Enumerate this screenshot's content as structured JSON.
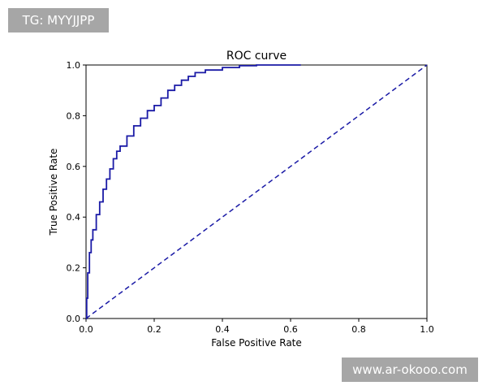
{
  "overlays": {
    "tag_text": "TG: MYYJJPP",
    "watermark_text": "www.ar-okooo.com"
  },
  "chart_data": {
    "type": "line",
    "title": "ROC curve",
    "xlabel": "False Positive Rate",
    "ylabel": "True Positive Rate",
    "xlim": [
      0.0,
      1.0
    ],
    "ylim": [
      0.0,
      1.0
    ],
    "x_ticks": [
      "0.0",
      "0.2",
      "0.4",
      "0.6",
      "0.8",
      "1.0"
    ],
    "y_ticks": [
      "0.0",
      "0.2",
      "0.4",
      "0.6",
      "0.8",
      "1.0"
    ],
    "grid": false,
    "series": [
      {
        "style": "solid",
        "color": "#1a1aa6",
        "x": [
          0.0,
          0.002,
          0.005,
          0.01,
          0.015,
          0.02,
          0.03,
          0.04,
          0.05,
          0.06,
          0.07,
          0.08,
          0.09,
          0.1,
          0.12,
          0.14,
          0.16,
          0.18,
          0.2,
          0.22,
          0.24,
          0.26,
          0.28,
          0.3,
          0.32,
          0.35,
          0.4,
          0.45,
          0.5,
          0.55,
          0.6,
          0.63
        ],
        "y": [
          0.0,
          0.08,
          0.18,
          0.26,
          0.31,
          0.35,
          0.41,
          0.46,
          0.51,
          0.55,
          0.59,
          0.63,
          0.66,
          0.68,
          0.72,
          0.76,
          0.79,
          0.82,
          0.84,
          0.87,
          0.9,
          0.92,
          0.94,
          0.955,
          0.97,
          0.98,
          0.99,
          0.997,
          1.0,
          1.0,
          1.0,
          1.0
        ]
      },
      {
        "style": "dashed",
        "color": "#1a1aa6",
        "x": [
          0.0,
          1.0
        ],
        "y": [
          0.0,
          1.0
        ]
      }
    ]
  }
}
